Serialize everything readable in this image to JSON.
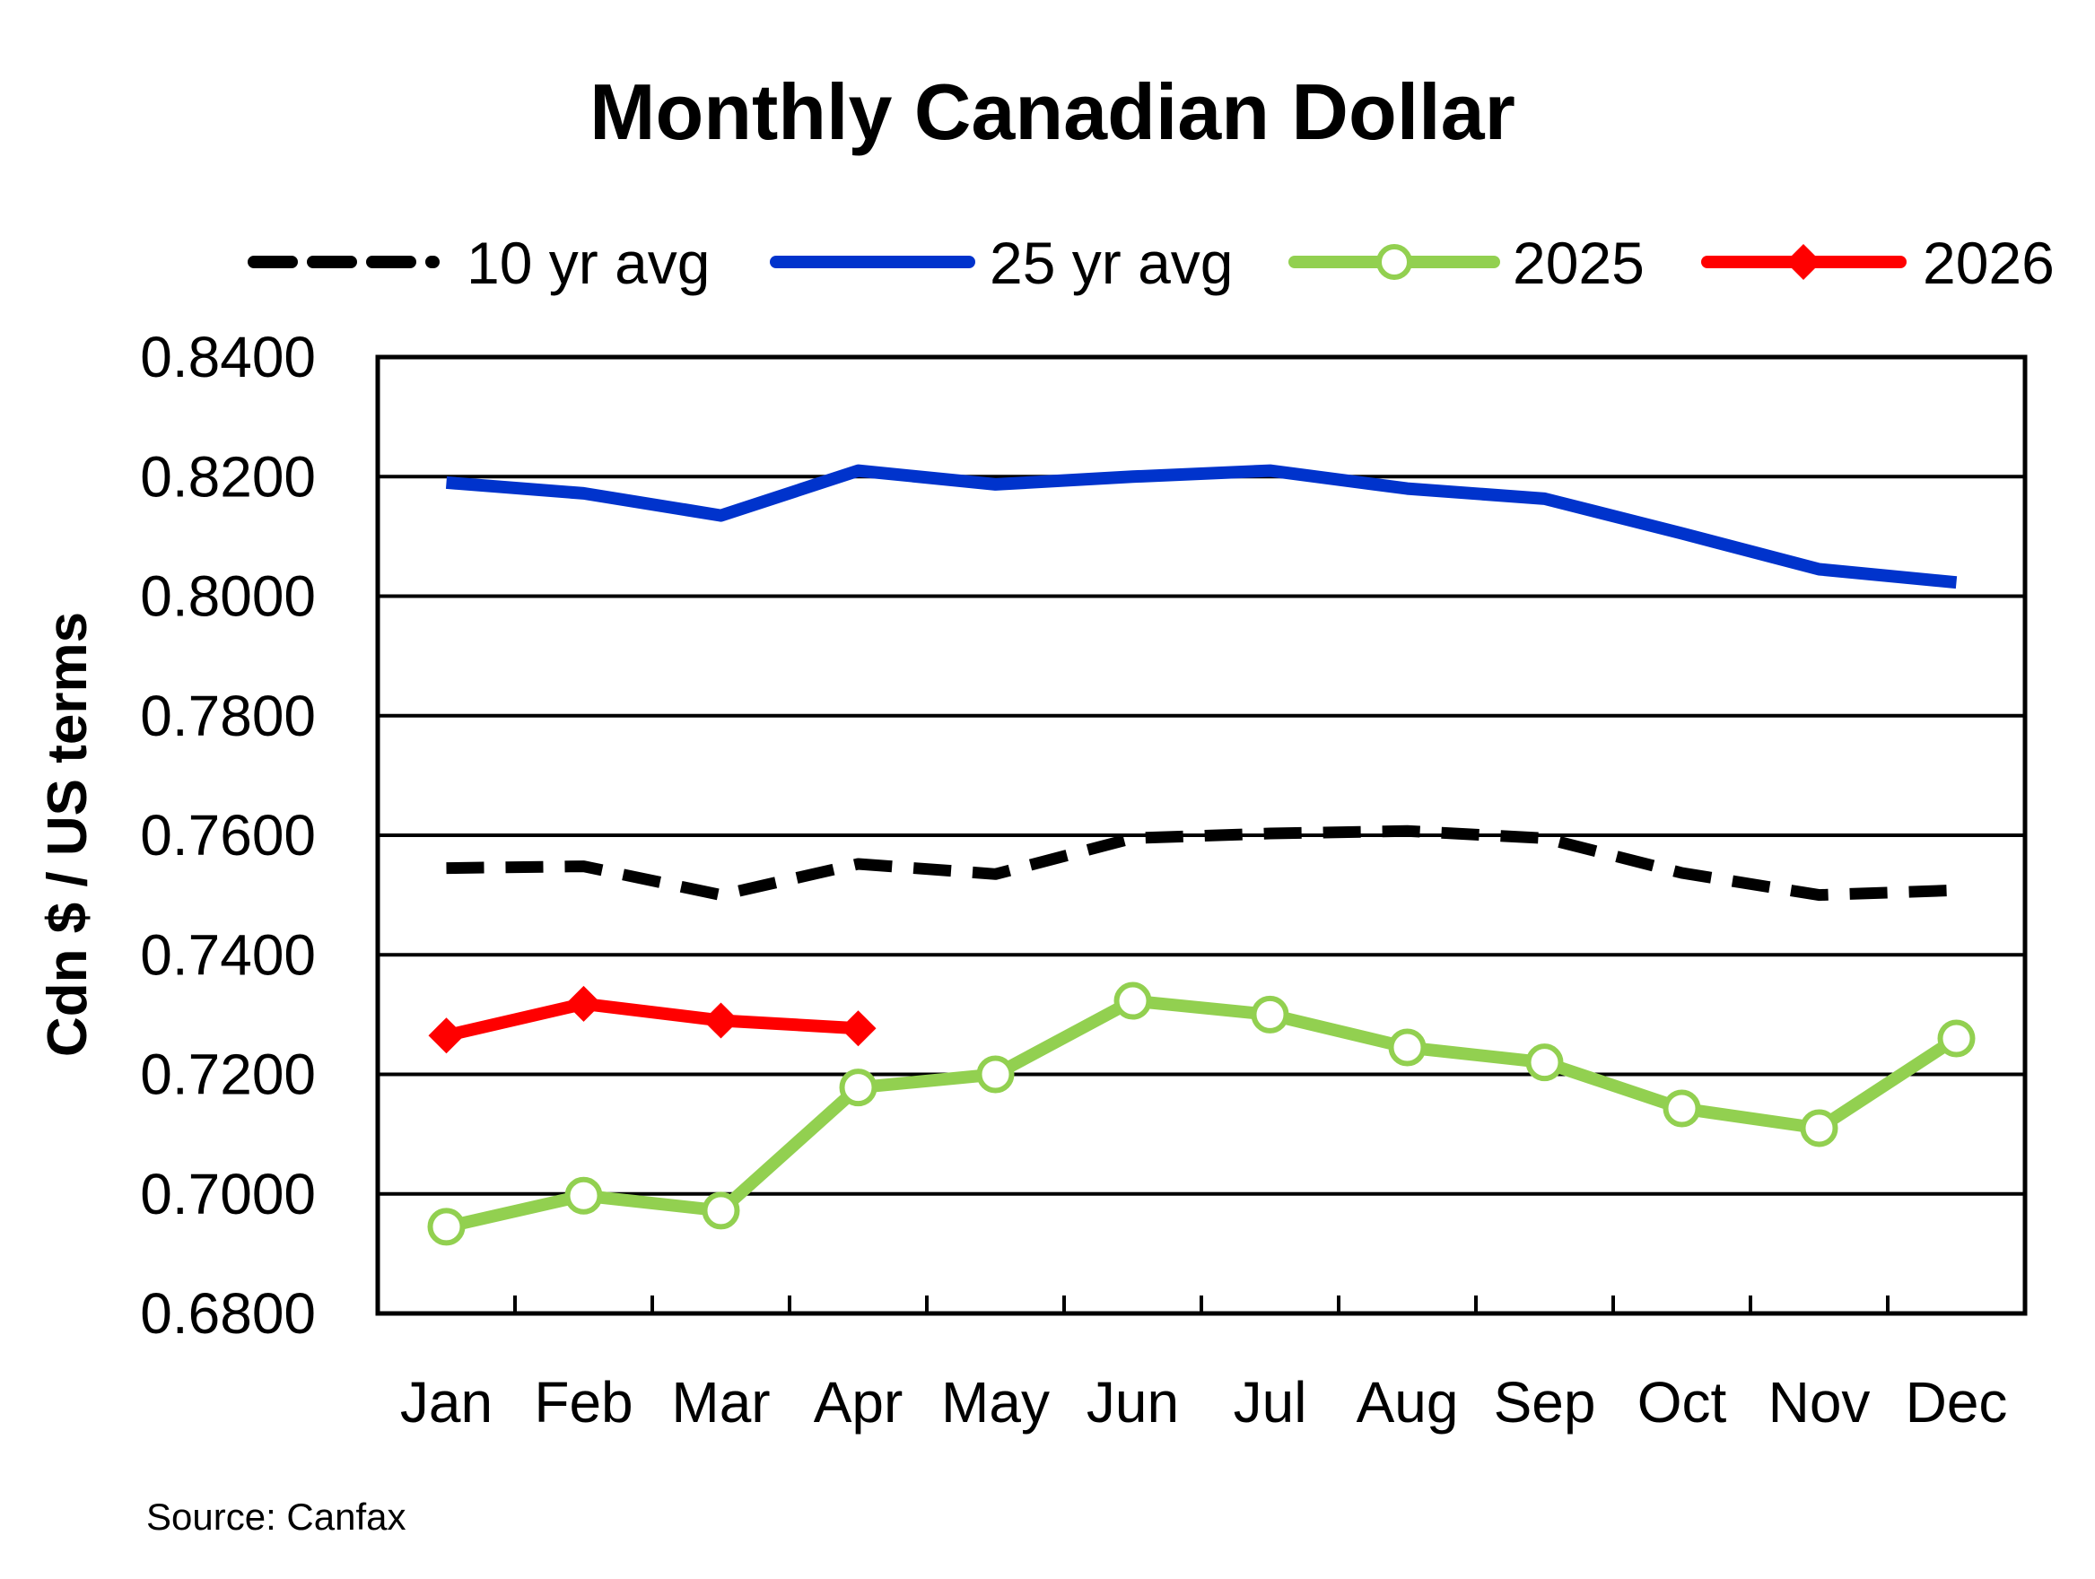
{
  "chart_data": {
    "type": "line",
    "title": "Monthly Canadian Dollar",
    "ylabel": "Cdn $ / US terms",
    "xlabel": "",
    "source": "Source:  Canfax",
    "categories": [
      "Jan",
      "Feb",
      "Mar",
      "Apr",
      "May",
      "Jun",
      "Jul",
      "Aug",
      "Sep",
      "Oct",
      "Nov",
      "Dec"
    ],
    "ylim": [
      0.68,
      0.84
    ],
    "yticks": [
      0.68,
      0.7,
      0.72,
      0.74,
      0.76,
      0.78,
      0.8,
      0.82,
      0.84
    ],
    "ytick_labels": [
      "0.6800",
      "0.7000",
      "0.7200",
      "0.7400",
      "0.7600",
      "0.7800",
      "0.8000",
      "0.8200",
      "0.8400"
    ],
    "grid": "horizontal",
    "legend_position": "top",
    "series": [
      {
        "name": "10 yr avg",
        "color": "#000000",
        "style": "dashed",
        "marker": "none",
        "values": [
          0.7545,
          0.7548,
          0.75,
          0.7552,
          0.7535,
          0.7595,
          0.7603,
          0.7607,
          0.7595,
          0.7537,
          0.75,
          0.7508
        ]
      },
      {
        "name": "25 yr avg",
        "color": "#0033CC",
        "style": "solid",
        "marker": "none",
        "values": [
          0.819,
          0.8172,
          0.8135,
          0.821,
          0.8187,
          0.82,
          0.821,
          0.818,
          0.8163,
          0.8105,
          0.8045,
          0.8023
        ]
      },
      {
        "name": "2025",
        "color": "#92D050",
        "style": "solid",
        "marker": "circle",
        "values": [
          0.6945,
          0.6997,
          0.6972,
          0.7178,
          0.72,
          0.7323,
          0.73,
          0.7245,
          0.722,
          0.7143,
          0.711,
          0.726
        ]
      },
      {
        "name": "2026",
        "color": "#FF0000",
        "style": "solid",
        "marker": "diamond",
        "values": [
          0.7265,
          0.7318,
          0.729,
          0.7277,
          null,
          null,
          null,
          null,
          null,
          null,
          null,
          null
        ]
      }
    ]
  }
}
